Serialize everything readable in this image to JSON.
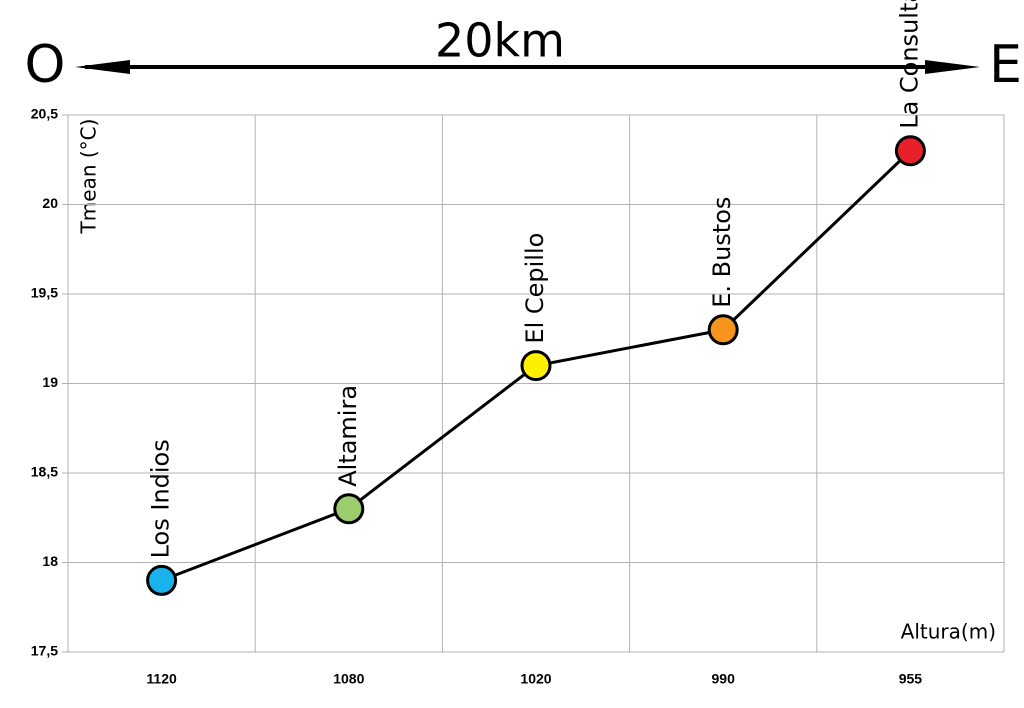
{
  "chart_data": {
    "type": "line",
    "scale_arrow": {
      "left": "O",
      "label": "20km",
      "right": "E"
    },
    "y_label": "Tmean (°C)",
    "x_label": "Altura(m)",
    "categories": [
      "1120",
      "1080",
      "1020",
      "990",
      "955"
    ],
    "series": [
      {
        "color": "#000000",
        "values": [
          17.9,
          18.3,
          19.1,
          19.3,
          20.3
        ],
        "point_labels": [
          "Los Indios",
          "Altamira",
          "El Cepillo",
          "E. Bustos",
          "La Consulta"
        ],
        "point_colors": [
          "#1ab2ea",
          "#9ccd6c",
          "#ffef00",
          "#f7941d",
          "#e8202a"
        ]
      }
    ],
    "ylim": [
      17.5,
      20.5
    ],
    "yticks": [
      {
        "value": 17.5,
        "label": "17,5"
      },
      18,
      {
        "value": 18.5,
        "label": "18,5"
      },
      19,
      {
        "value": 19.5,
        "label": "19,5"
      },
      20,
      {
        "value": 20.5,
        "label": "20,5"
      }
    ],
    "grid": true
  }
}
